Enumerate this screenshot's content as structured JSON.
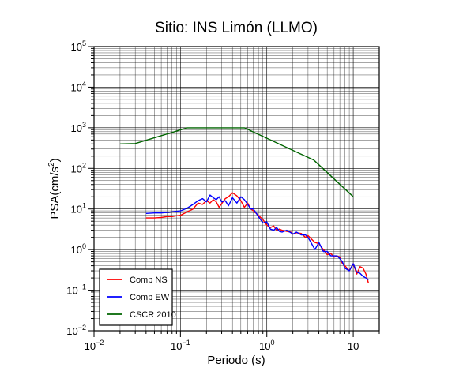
{
  "chart_data": {
    "type": "line",
    "title": "Sitio: INS Limón (LLMO)",
    "xlabel": "Periodo (s)",
    "ylabel": "PSA(cm/s",
    "ylabel_exp": "2",
    "ylabel_close": ")",
    "xscale": "log",
    "yscale": "log",
    "xlim": [
      0.01,
      20
    ],
    "ylim": [
      0.01,
      100000
    ],
    "grid": true,
    "legend_position": "bottom-left",
    "x_ticks": [
      {
        "base": "10",
        "exp": "−2",
        "value": 0.01
      },
      {
        "base": "10",
        "exp": "−1",
        "value": 0.1
      },
      {
        "base": "10",
        "exp": "0",
        "value": 1
      },
      {
        "base": "10",
        "exp": "",
        "value": 10
      }
    ],
    "y_ticks": [
      {
        "base": "10",
        "exp": "−2",
        "value": 0.01
      },
      {
        "base": "10",
        "exp": "−1",
        "value": 0.1
      },
      {
        "base": "10",
        "exp": "0",
        "value": 1
      },
      {
        "base": "10",
        "exp": "1",
        "value": 10
      },
      {
        "base": "10",
        "exp": "2",
        "value": 100
      },
      {
        "base": "10",
        "exp": "3",
        "value": 1000
      },
      {
        "base": "10",
        "exp": "4",
        "value": 10000
      },
      {
        "base": "10",
        "exp": "5",
        "value": 100000
      }
    ],
    "series": [
      {
        "name": "Comp NS",
        "color": "#ff0000",
        "x": [
          0.04,
          0.05,
          0.06,
          0.07,
          0.08,
          0.09,
          0.1,
          0.12,
          0.14,
          0.16,
          0.18,
          0.2,
          0.22,
          0.24,
          0.26,
          0.28,
          0.3,
          0.33,
          0.36,
          0.4,
          0.45,
          0.5,
          0.55,
          0.6,
          0.65,
          0.7,
          0.8,
          0.9,
          1.0,
          1.1,
          1.2,
          1.3,
          1.4,
          1.5,
          1.7,
          1.9,
          2.0,
          2.2,
          2.5,
          2.8,
          3.0,
          3.3,
          3.6,
          4.0,
          4.5,
          5.0,
          5.5,
          6.0,
          6.5,
          7.0,
          7.5,
          8.0,
          9.0,
          10.0,
          11.0,
          12.0,
          13.0,
          14.0,
          15.0
        ],
        "y": [
          6.0,
          6.0,
          6.2,
          6.5,
          6.5,
          6.8,
          7.0,
          8.5,
          10.0,
          14.0,
          13.0,
          16.0,
          14.0,
          17.0,
          15.0,
          11.0,
          13.5,
          18.0,
          20.0,
          25.0,
          21.0,
          16.0,
          11.0,
          14.0,
          10.0,
          9.0,
          7.0,
          5.5,
          4.0,
          3.5,
          3.8,
          3.0,
          3.2,
          3.0,
          2.8,
          2.7,
          2.4,
          2.6,
          2.5,
          2.0,
          2.2,
          1.8,
          1.5,
          1.4,
          1.0,
          0.75,
          0.8,
          0.65,
          0.7,
          0.65,
          0.45,
          0.4,
          0.3,
          0.45,
          0.25,
          0.38,
          0.35,
          0.25,
          0.15
        ]
      },
      {
        "name": "Comp EW",
        "color": "#0000ff",
        "x": [
          0.04,
          0.05,
          0.06,
          0.07,
          0.08,
          0.09,
          0.1,
          0.12,
          0.14,
          0.16,
          0.18,
          0.2,
          0.22,
          0.24,
          0.26,
          0.28,
          0.3,
          0.33,
          0.36,
          0.4,
          0.45,
          0.5,
          0.55,
          0.6,
          0.65,
          0.7,
          0.75,
          0.8,
          0.9,
          1.0,
          1.1,
          1.2,
          1.3,
          1.4,
          1.5,
          1.7,
          1.9,
          2.0,
          2.2,
          2.5,
          2.8,
          3.0,
          3.3,
          3.6,
          4.0,
          4.5,
          5.0,
          5.5,
          6.0,
          6.5,
          7.0,
          7.5,
          8.0,
          9.0,
          10.0,
          11.0,
          12.0,
          13.0,
          14.0,
          15.0
        ],
        "y": [
          7.8,
          8.0,
          8.0,
          8.2,
          8.5,
          8.8,
          9.0,
          10.5,
          13.0,
          16.0,
          18.0,
          15.0,
          22.0,
          19.0,
          17.0,
          20.0,
          15.0,
          16.0,
          12.0,
          19.0,
          14.0,
          20.0,
          17.0,
          13.0,
          10.0,
          10.0,
          8.0,
          6.5,
          4.5,
          4.8,
          3.2,
          3.0,
          3.5,
          2.8,
          2.7,
          3.0,
          2.6,
          2.4,
          2.7,
          2.3,
          2.3,
          2.0,
          1.4,
          1.0,
          1.5,
          0.9,
          0.9,
          0.7,
          0.7,
          0.7,
          0.6,
          0.5,
          0.35,
          0.3,
          0.45,
          0.28,
          0.26,
          0.22,
          0.2,
          0.18
        ]
      },
      {
        "name": "CSCR 2010",
        "color": "#006400",
        "x": [
          0.02,
          0.03,
          0.12,
          0.55,
          3.5,
          10.0
        ],
        "y": [
          400,
          410,
          1000,
          1000,
          160,
          20
        ]
      }
    ]
  }
}
